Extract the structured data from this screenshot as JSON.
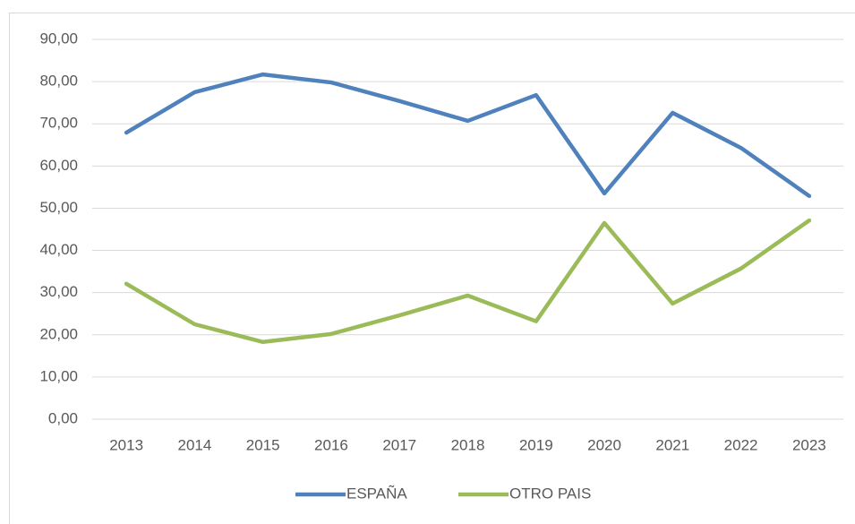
{
  "chart_data": {
    "type": "line",
    "categories": [
      "2013",
      "2014",
      "2015",
      "2016",
      "2017",
      "2018",
      "2019",
      "2020",
      "2021",
      "2022",
      "2023"
    ],
    "series": [
      {
        "name": "ESPAÑA",
        "color": "#4f81bd",
        "values": [
          67.9,
          77.5,
          81.7,
          79.8,
          75.4,
          70.7,
          76.8,
          53.5,
          72.6,
          64.3,
          52.9
        ]
      },
      {
        "name": "OTRO PAIS",
        "color": "#9bbb59",
        "values": [
          32.1,
          22.5,
          18.3,
          20.2,
          24.6,
          29.3,
          23.2,
          46.5,
          27.4,
          35.7,
          47.1
        ]
      }
    ],
    "ylim": [
      0,
      90
    ],
    "yticks": [
      {
        "value": 0,
        "label": "0,00"
      },
      {
        "value": 10,
        "label": "10,00"
      },
      {
        "value": 20,
        "label": "20,00"
      },
      {
        "value": 30,
        "label": "30,00"
      },
      {
        "value": 40,
        "label": "40,00"
      },
      {
        "value": 50,
        "label": "50,00"
      },
      {
        "value": 60,
        "label": "60,00"
      },
      {
        "value": 70,
        "label": "70,00"
      },
      {
        "value": 80,
        "label": "80,00"
      },
      {
        "value": 90,
        "label": "90,00"
      }
    ],
    "grid": true,
    "legend": "bottom"
  }
}
